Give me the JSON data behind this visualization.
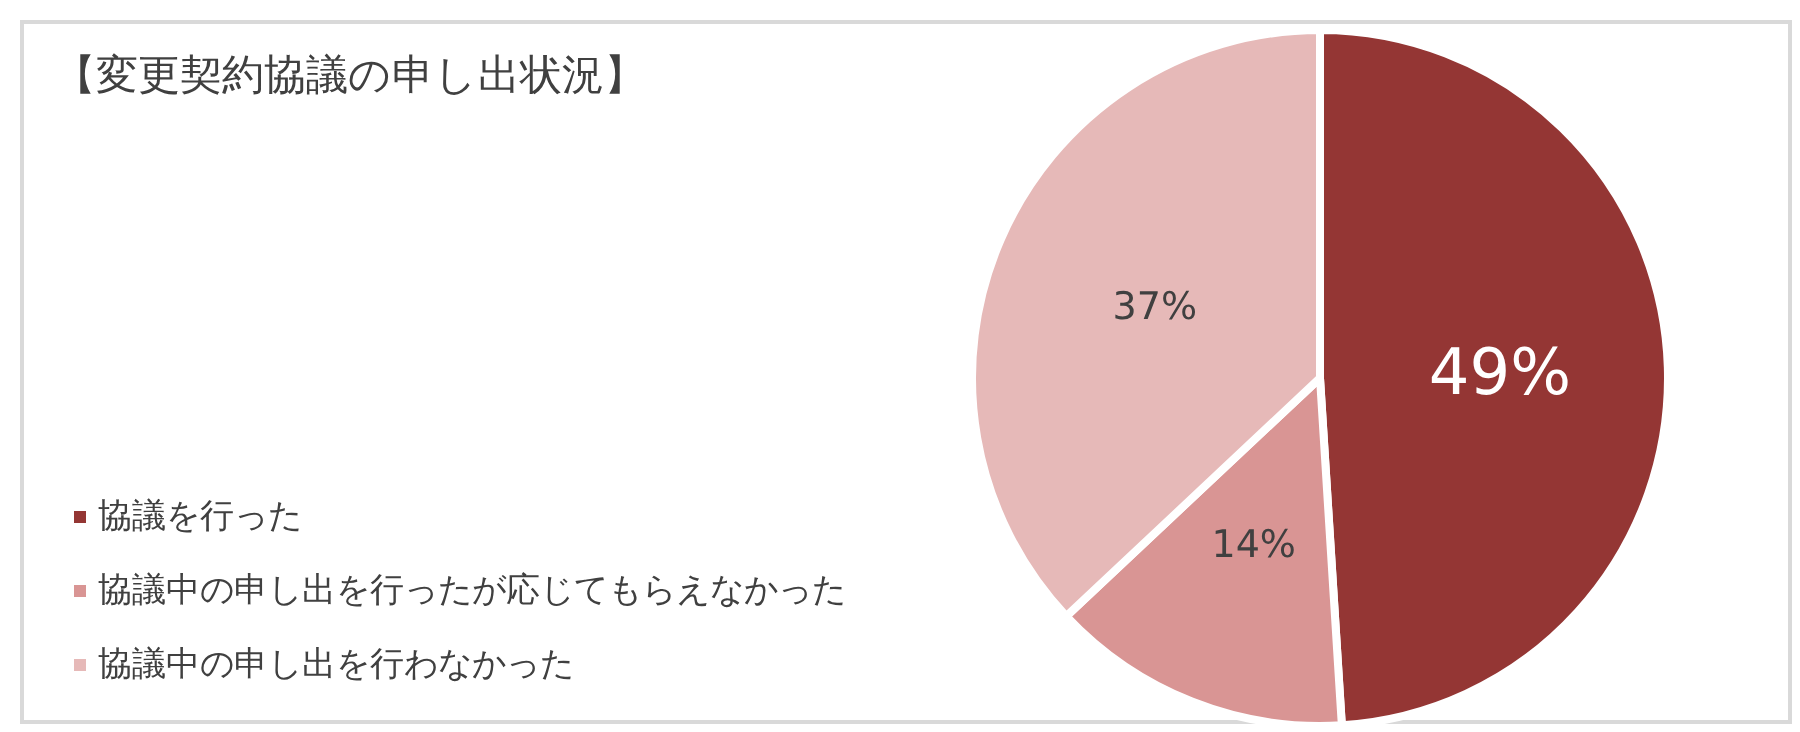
{
  "chart_data": {
    "type": "pie",
    "title": "【変更契約協議の申し出状況】",
    "categories": [
      "協議を行った",
      "協議中の申し出を行ったが応じてもらえなかった",
      "協議中の申し出を行わなかった"
    ],
    "values": [
      49,
      14,
      37
    ],
    "colors": [
      "#943634",
      "#d99594",
      "#e6b9b8"
    ],
    "value_labels": [
      "49%",
      "14%",
      "37%"
    ],
    "legend": "bottom left"
  }
}
